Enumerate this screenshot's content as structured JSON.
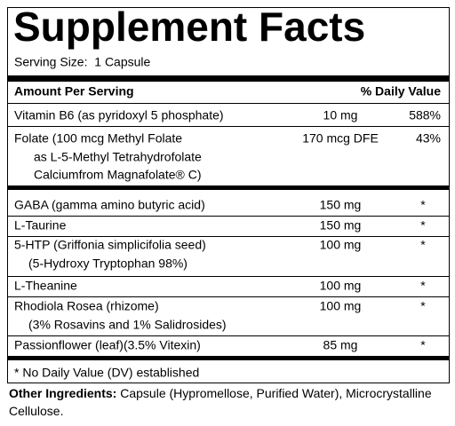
{
  "header": {
    "title": "Supplement Facts",
    "serving_size": "Serving Size:  1 Capsule"
  },
  "table": {
    "amount_label": "Amount Per Serving",
    "dv_label": "% Daily Value",
    "rows": [
      {
        "lines": [
          "Vitamin B6 (as pyridoxyl 5 phosphate)"
        ],
        "amount": "10 mg",
        "dv": "588%"
      },
      {
        "lines": [
          "Folate (100 mcg Methyl Folate",
          "as L-5-Methyl Tetrahydrofolate",
          "Calciumfrom Magnafolate® C)"
        ],
        "amount": "170 mcg DFE",
        "dv": "43%"
      },
      {
        "lines": [
          "GABA (gamma amino butyric acid)"
        ],
        "amount": "150 mg",
        "dv": "*"
      },
      {
        "lines": [
          "L-Taurine"
        ],
        "amount": "150 mg",
        "dv": "*"
      },
      {
        "lines": [
          "5-HTP (Griffonia simplicifolia seed)",
          "(5-Hydroxy Tryptophan 98%)"
        ],
        "amount": "100 mg",
        "dv": "*"
      },
      {
        "lines": [
          "L-Theanine"
        ],
        "amount": "100 mg",
        "dv": "*"
      },
      {
        "lines": [
          "Rhodiola Rosea (rhizome)",
          "(3% Rosavins and 1% Salidrosides)"
        ],
        "amount": "100 mg",
        "dv": "*"
      },
      {
        "lines": [
          "Passionflower (leaf)(3.5% Vitexin)"
        ],
        "amount": "85 mg",
        "dv": "*"
      }
    ],
    "footnote": "* No Daily Value (DV) established"
  },
  "other_ingredients": {
    "label": "Other Ingredients:",
    "text": " Capsule (Hypromellose, Purified Water), Microcrystalline Cellulose."
  }
}
